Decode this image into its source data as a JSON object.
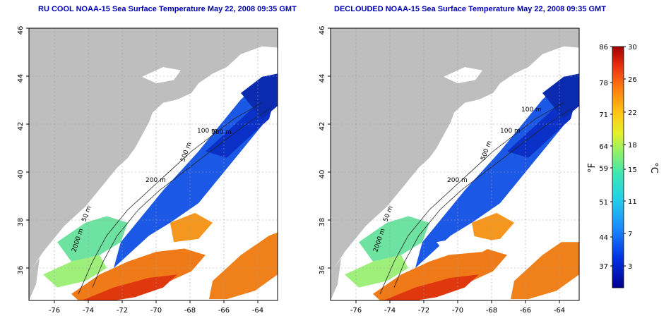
{
  "maps": [
    {
      "title": "RU COOL NOAA-15 Sea Surface Temperature May 22, 2008 09:35 GMT",
      "lat_ticks": [
        "46",
        "44",
        "42",
        "40",
        "38",
        "36"
      ],
      "lon_ticks": [
        "-76",
        "-74",
        "-72",
        "-70",
        "-68",
        "-66",
        "-64"
      ],
      "contour_labels": [
        "100 m",
        "100 m",
        "200 m",
        "2000 m",
        "50 m",
        "500 m"
      ]
    },
    {
      "title": "DECLOUDED NOAA-15 Sea Surface Temperature May 22, 2008 09:35 GMT",
      "lat_ticks": [
        "46",
        "44",
        "42",
        "40",
        "38",
        "36"
      ],
      "lon_ticks": [
        "-76",
        "-74",
        "-72",
        "-70",
        "-68",
        "-66",
        "-64"
      ],
      "contour_labels": [
        "100 m",
        "100 m",
        "200 m",
        "2000 m",
        "50 m",
        "500 m"
      ]
    }
  ],
  "colorbar": {
    "f_label": "°F",
    "c_label": "°C",
    "f_ticks": [
      "86",
      "78",
      "71",
      "64",
      "59",
      "51",
      "44",
      "37"
    ],
    "c_ticks": [
      "30",
      "26",
      "22",
      "18",
      "15",
      "11",
      "7",
      "3"
    ]
  },
  "colors": {
    "title": "#0000b4",
    "land": "#bebebe",
    "cold": "#0a1a9a",
    "warm": "#d22a10"
  }
}
